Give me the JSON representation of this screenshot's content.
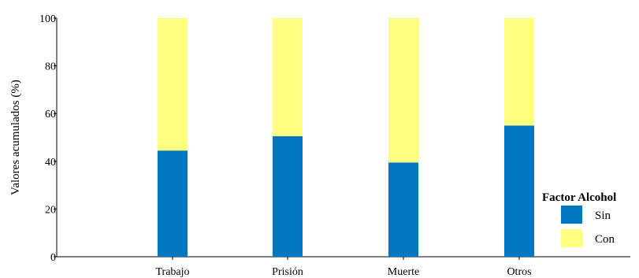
{
  "chart_data": {
    "type": "bar",
    "stacked": true,
    "categories": [
      "Trabajo",
      "Prisión",
      "Muerte",
      "Otros"
    ],
    "series": [
      {
        "name": "Sin",
        "color": "#0077c0",
        "values": [
          44.5,
          50.5,
          39.5,
          55.0
        ]
      },
      {
        "name": "Con",
        "color": "#ffff80",
        "values": [
          55.5,
          49.5,
          60.5,
          45.0
        ]
      }
    ],
    "ylabel": "Valores acumulados (%)",
    "xlabel": "",
    "ylim": [
      0,
      100
    ],
    "yticks": [
      0,
      20,
      40,
      60,
      80,
      100
    ],
    "grid": false,
    "legend": {
      "title": "Factor Alcohol",
      "placement": "right"
    }
  }
}
